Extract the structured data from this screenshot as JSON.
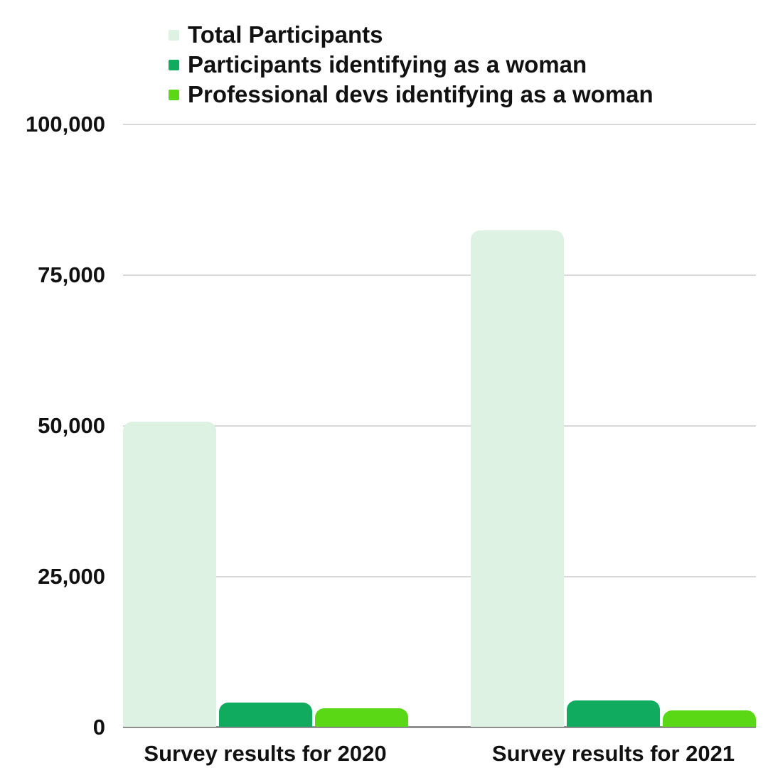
{
  "chart_data": {
    "type": "bar",
    "title": "",
    "categories": [
      "Survey results for 2020",
      "Survey results for 2021"
    ],
    "series": [
      {
        "name": "Total Participants",
        "color": "#ddf2e2",
        "values": [
          50600,
          82400
        ]
      },
      {
        "name": "Participants identifying as a woman",
        "color": "#10ab5e",
        "values": [
          4000,
          4350
        ]
      },
      {
        "name": "Professional devs identifying as a woman",
        "color": "#5ad715",
        "values": [
          3050,
          2700
        ]
      }
    ],
    "y_axis": {
      "min": 0,
      "max": 100000,
      "tick_interval": 25000,
      "tick_labels_top_to_bottom": [
        "100,000",
        "75,000",
        "50,000",
        "25,000",
        "0"
      ]
    },
    "grid": {
      "horizontal": true,
      "gridline_color": "#d8d8d8",
      "baseline_color": "#8f8f8f"
    },
    "legend_position": "top-left",
    "background": "#ffffff",
    "text_color": "#111111"
  }
}
